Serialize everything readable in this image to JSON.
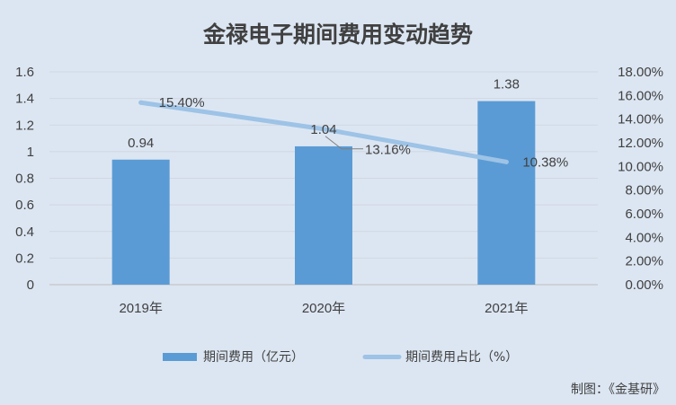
{
  "chart_data": {
    "type": "bar",
    "title": "金禄电子期间费用变动趋势",
    "categories": [
      "2019年",
      "2020年",
      "2021年"
    ],
    "series": [
      {
        "name": "期间费用（亿元）",
        "type": "bar",
        "axis": "left",
        "values": [
          0.94,
          1.04,
          1.38
        ],
        "labels": [
          "0.94",
          "1.04",
          "1.38"
        ],
        "color": "#5b9bd5"
      },
      {
        "name": "期间费用占比（%）",
        "type": "line",
        "axis": "right",
        "values": [
          15.4,
          13.16,
          10.38
        ],
        "labels": [
          "15.40%",
          "13.16%",
          "10.38%"
        ],
        "color": "#9dc3e6"
      }
    ],
    "y_left": {
      "min": 0,
      "max": 1.6,
      "ticks": [
        "0",
        "0.2",
        "0.4",
        "0.6",
        "0.8",
        "1",
        "1.2",
        "1.4",
        "1.6"
      ]
    },
    "y_right": {
      "min": 0,
      "max": 18,
      "ticks": [
        "0.00%",
        "2.00%",
        "4.00%",
        "6.00%",
        "8.00%",
        "10.00%",
        "12.00%",
        "14.00%",
        "16.00%",
        "18.00%"
      ]
    },
    "grid": true,
    "legend_position": "bottom"
  },
  "credit": "制图：《金基研》"
}
